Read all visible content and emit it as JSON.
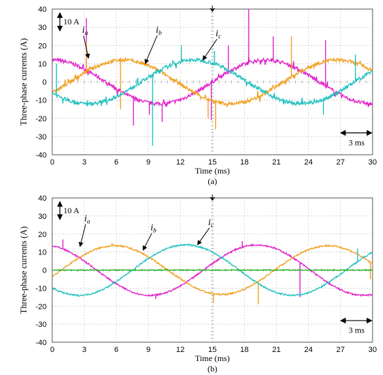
{
  "chart_data": [
    {
      "type": "line",
      "subtitle": "(a)",
      "xlabel": "Time (ms)",
      "ylabel": "Three-phase currents  (A)",
      "xlim": [
        0,
        30
      ],
      "ylim": [
        -40,
        40
      ],
      "xticks": [
        "0",
        "3",
        "6",
        "9",
        "12",
        "15",
        "18",
        "21",
        "24",
        "27",
        "30"
      ],
      "yticks": [
        "40",
        "30",
        "20",
        "10",
        "0",
        "-10",
        "-20",
        "-30",
        "-40"
      ],
      "grid": true,
      "scale_annotations": {
        "vertical": "10 A",
        "horizontal": "3 ms"
      },
      "series": [
        {
          "name": "i",
          "sub": "a",
          "color": "#e020c8",
          "amplitude": 12,
          "phase_deg": 90,
          "noise": "high",
          "spikes": [
            [
              3.2,
              35
            ],
            [
              7.6,
              -24
            ],
            [
              9.1,
              -18
            ],
            [
              10.3,
              -22
            ],
            [
              14.9,
              -21
            ],
            [
              16.5,
              20
            ],
            [
              18.4,
              40
            ],
            [
              20.7,
              25
            ],
            [
              25.6,
              23
            ]
          ]
        },
        {
          "name": "i",
          "sub": "b",
          "color": "#f0a020",
          "amplitude": 12,
          "phase_deg": -30,
          "noise": "high",
          "spikes": [
            [
              3.2,
              22
            ],
            [
              6.4,
              -15
            ],
            [
              14.6,
              -20
            ],
            [
              15.3,
              -26
            ],
            [
              22.4,
              25
            ]
          ]
        },
        {
          "name": "i",
          "sub": "c",
          "color": "#20c0c0",
          "amplitude": 12,
          "phase_deg": 210,
          "noise": "high",
          "spikes": [
            [
              0.4,
              10
            ],
            [
              3.3,
              -10
            ],
            [
              9.4,
              -35
            ],
            [
              12.1,
              20
            ],
            [
              15.2,
              17
            ],
            [
              25.4,
              -18
            ],
            [
              28.4,
              15
            ]
          ]
        }
      ],
      "label_positions": [
        {
          "series": 0,
          "x": 2.8,
          "y": 27,
          "arrow_to": [
            3.4,
            13
          ]
        },
        {
          "series": 1,
          "x": 9.7,
          "y": 27,
          "arrow_to": [
            8.7,
            10
          ]
        },
        {
          "series": 2,
          "x": 15.3,
          "y": 25,
          "arrow_to": [
            14.1,
            12
          ]
        }
      ]
    },
    {
      "type": "line",
      "subtitle": "(b)",
      "xlabel": "Time (ms)",
      "ylabel": "Three-phase currents  (A)",
      "xlim": [
        0,
        30
      ],
      "ylim": [
        -40,
        40
      ],
      "xticks": [
        "0",
        "3",
        "6",
        "9",
        "12",
        "15",
        "18",
        "21",
        "24",
        "27",
        "30"
      ],
      "yticks": [
        "40",
        "30",
        "20",
        "10",
        "0",
        "-10",
        "-20",
        "-30",
        "-40"
      ],
      "grid": true,
      "scale_annotations": {
        "vertical": "10 A",
        "horizontal": "3 ms"
      },
      "series": [
        {
          "name": "i",
          "sub": "a",
          "color": "#e020c8",
          "amplitude": 14,
          "phase_deg": 105,
          "noise": "low",
          "spikes": [
            [
              1.0,
              17
            ],
            [
              9.7,
              -16
            ],
            [
              17.8,
              16
            ],
            [
              23.2,
              -15
            ]
          ]
        },
        {
          "name": "i",
          "sub": "b",
          "color": "#f0a020",
          "amplitude": 13.5,
          "phase_deg": -15,
          "noise": "low",
          "spikes": [
            [
              5.6,
              15
            ],
            [
              15.1,
              -18
            ],
            [
              19.3,
              -19
            ],
            [
              29.8,
              -5
            ]
          ]
        },
        {
          "name": "i",
          "sub": "c",
          "color": "#20c0c0",
          "amplitude": 14,
          "phase_deg": 225,
          "noise": "low",
          "spikes": [
            [
              28.6,
              12
            ]
          ]
        },
        {
          "name": "",
          "sub": "",
          "color": "#20b020",
          "amplitude": 0,
          "phase_deg": 0,
          "noise": "flat",
          "spikes": []
        }
      ],
      "label_positions": [
        {
          "series": 0,
          "x": 3.0,
          "y": 27,
          "arrow_to": [
            2.6,
            13
          ]
        },
        {
          "series": 1,
          "x": 9.2,
          "y": 22,
          "arrow_to": [
            8.5,
            11
          ]
        },
        {
          "series": 2,
          "x": 14.6,
          "y": 25,
          "arrow_to": [
            13.6,
            14
          ]
        }
      ]
    }
  ]
}
